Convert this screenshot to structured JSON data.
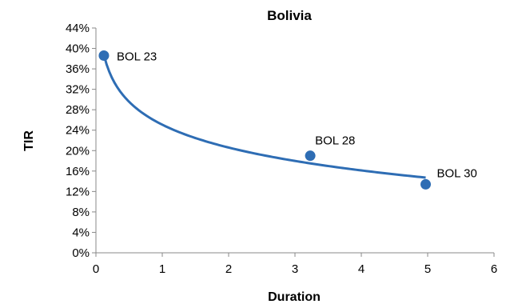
{
  "chart_data": {
    "type": "scatter",
    "title": "Bolivia",
    "xlabel": "Duration",
    "ylabel": "TIR",
    "xlim": [
      0,
      6
    ],
    "ylim": [
      0,
      44
    ],
    "x_ticks": [
      "0",
      "1",
      "2",
      "3",
      "4",
      "5",
      "6"
    ],
    "y_ticks": [
      "0%",
      "4%",
      "8%",
      "12%",
      "16%",
      "20%",
      "24%",
      "28%",
      "32%",
      "36%",
      "40%",
      "44%"
    ],
    "points": [
      {
        "label": "BOL 23",
        "x": 0.12,
        "y": 38.6
      },
      {
        "label": "BOL 28",
        "x": 3.23,
        "y": 19.0
      },
      {
        "label": "BOL 30",
        "x": 4.97,
        "y": 13.4
      }
    ],
    "trendline": {
      "type": "logarithmic",
      "x_from": 0.12,
      "x_to": 4.97
    },
    "grid": false,
    "legend": "none",
    "colors": {
      "series": "#2E6DB4",
      "axis": "#888888"
    }
  }
}
